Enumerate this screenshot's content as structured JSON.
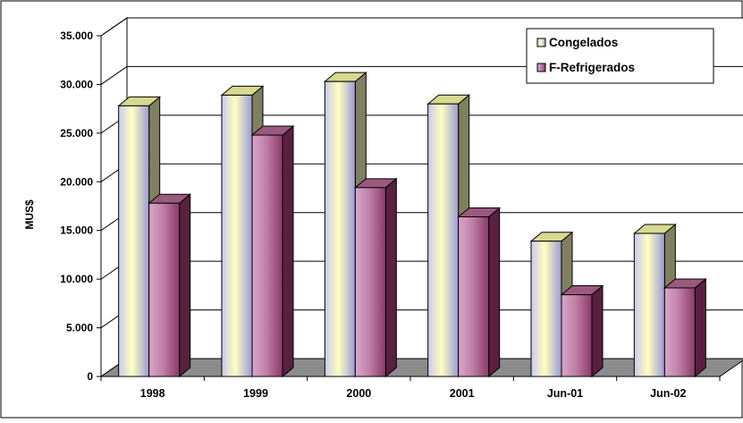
{
  "chart_data": {
    "type": "bar",
    "title": "",
    "xlabel": "",
    "ylabel": "MUS$",
    "ylim": [
      0,
      35000
    ],
    "yticks": [
      0,
      5000,
      10000,
      15000,
      20000,
      25000,
      30000,
      35000
    ],
    "ytick_labels": [
      "0",
      "5.000",
      "10.000",
      "15.000",
      "20.000",
      "25.000",
      "30.000",
      "35.000"
    ],
    "categories": [
      "1998",
      "1999",
      "2000",
      "2001",
      "Jun-01",
      "Jun-02"
    ],
    "series": [
      {
        "name": "Congelados",
        "values": [
          27800,
          28900,
          30300,
          28000,
          13900,
          14700
        ]
      },
      {
        "name": "F-Refrigerados",
        "values": [
          17800,
          24800,
          19400,
          16400,
          8400,
          9100
        ]
      }
    ],
    "grid": true,
    "three_d": true,
    "legend": {
      "position": "top-right"
    },
    "colors": {
      "congelados_front_edge": "#c9c9f0",
      "congelados_front_mid": "#ffffbf",
      "congelados_front_dark": "#9a9ad8",
      "congelados_top": "#d8d890",
      "congelados_side": "#808060",
      "refrigerados_front_light": "#d8a8c8",
      "refrigerados_front_dark": "#8a3a68",
      "refrigerados_top": "#9a5a80",
      "refrigerados_side": "#5a2040",
      "floor": "#8c8c8c",
      "grid": "#000000"
    }
  }
}
